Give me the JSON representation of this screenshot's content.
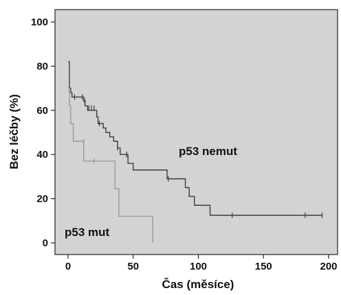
{
  "chart_data": {
    "type": "line",
    "subtype": "kaplan-meier",
    "title": "",
    "xlabel": "Čas (měsíce)",
    "ylabel": "Bez léčby (%)",
    "xlim": [
      -10,
      205
    ],
    "ylim": [
      -5,
      105
    ],
    "xticks": [
      0,
      50,
      100,
      150,
      200
    ],
    "yticks": [
      0,
      20,
      40,
      60,
      80,
      100
    ],
    "plot_background": "#d3d3d3",
    "grid": false,
    "series": [
      {
        "name": "p53 nemut",
        "color": "#3c3c3c",
        "steps": [
          [
            0,
            82
          ],
          [
            1,
            70
          ],
          [
            2,
            68
          ],
          [
            3,
            66
          ],
          [
            12,
            64
          ],
          [
            13,
            62
          ],
          [
            15,
            60
          ],
          [
            22,
            57
          ],
          [
            23,
            54
          ],
          [
            27,
            52
          ],
          [
            29,
            50
          ],
          [
            32,
            48
          ],
          [
            35,
            46
          ],
          [
            38,
            43
          ],
          [
            40,
            40
          ],
          [
            46,
            36
          ],
          [
            50,
            33
          ],
          [
            76,
            29
          ],
          [
            90,
            25
          ],
          [
            93,
            21
          ],
          [
            97,
            17
          ],
          [
            109,
            12.5
          ],
          [
            195,
            12.5
          ]
        ],
        "censored": [
          [
            5,
            66
          ],
          [
            11,
            66
          ],
          [
            13,
            64
          ],
          [
            16,
            61
          ],
          [
            18,
            61
          ],
          [
            20,
            61
          ],
          [
            24,
            54
          ],
          [
            38,
            43
          ],
          [
            45,
            40
          ],
          [
            77,
            29
          ],
          [
            126,
            12.5
          ],
          [
            182,
            12.5
          ],
          [
            195,
            12.5
          ]
        ]
      },
      {
        "name": "p53 mut",
        "color": "#9a9a9a",
        "steps": [
          [
            0,
            69
          ],
          [
            1,
            62
          ],
          [
            2,
            54
          ],
          [
            4,
            46
          ],
          [
            12,
            37
          ],
          [
            36,
            24.5
          ],
          [
            39,
            12
          ],
          [
            65,
            0
          ]
        ],
        "censored": [
          [
            12,
            46
          ],
          [
            20,
            37
          ]
        ]
      }
    ],
    "annotations": [
      {
        "text": "p53 nemut",
        "series": 0
      },
      {
        "text": "p53 mut",
        "series": 1
      }
    ]
  }
}
